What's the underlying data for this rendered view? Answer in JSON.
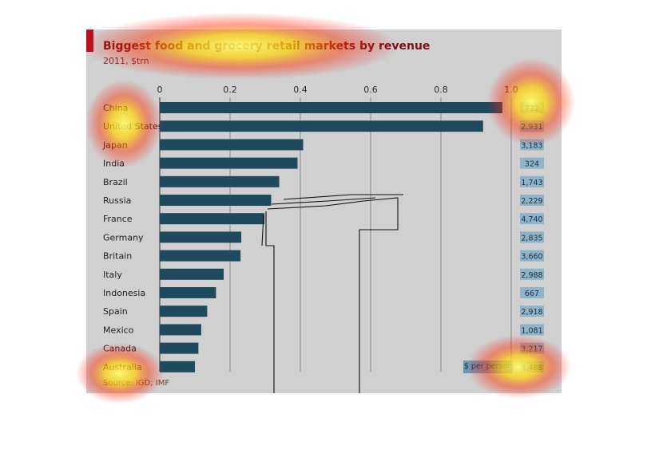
{
  "chart_data": {
    "type": "bar",
    "orientation": "horizontal",
    "title": "Biggest food and grocery retail markets by revenue",
    "subtitle": "2011, $trn",
    "source": "Source: IGD; IMF",
    "xlim": [
      0,
      1.0
    ],
    "ticks": [
      0,
      0.2,
      0.4,
      0.6,
      0.8,
      1.0
    ],
    "tick_labels": [
      "0",
      "0.2",
      "0.4",
      "0.6",
      "0.8",
      "1.0"
    ],
    "grid": true,
    "categories": [
      "China",
      "United States",
      "Japan",
      "India",
      "Brazil",
      "Russia",
      "France",
      "Germany",
      "Britain",
      "Italy",
      "Indonesia",
      "Spain",
      "Mexico",
      "Canada",
      "Australia"
    ],
    "values": [
      0.975,
      0.92,
      0.408,
      0.392,
      0.34,
      0.317,
      0.298,
      0.232,
      0.23,
      0.182,
      0.16,
      0.135,
      0.118,
      0.11,
      0.1
    ],
    "per_person_label": "$ per person",
    "per_person_values": [
      "722",
      "2,931",
      "3,183",
      "324",
      "1,743",
      "2,229",
      "4,740",
      "2,835",
      "3,660",
      "2,988",
      "667",
      "2,918",
      "1,081",
      "3,217",
      "4,488"
    ],
    "colors": {
      "bar": "#1f4a5e",
      "panel": "#d0d0d0",
      "per_person_box": "#8fb3c9",
      "title": "#7a1018",
      "accent": "#b4121e"
    }
  }
}
